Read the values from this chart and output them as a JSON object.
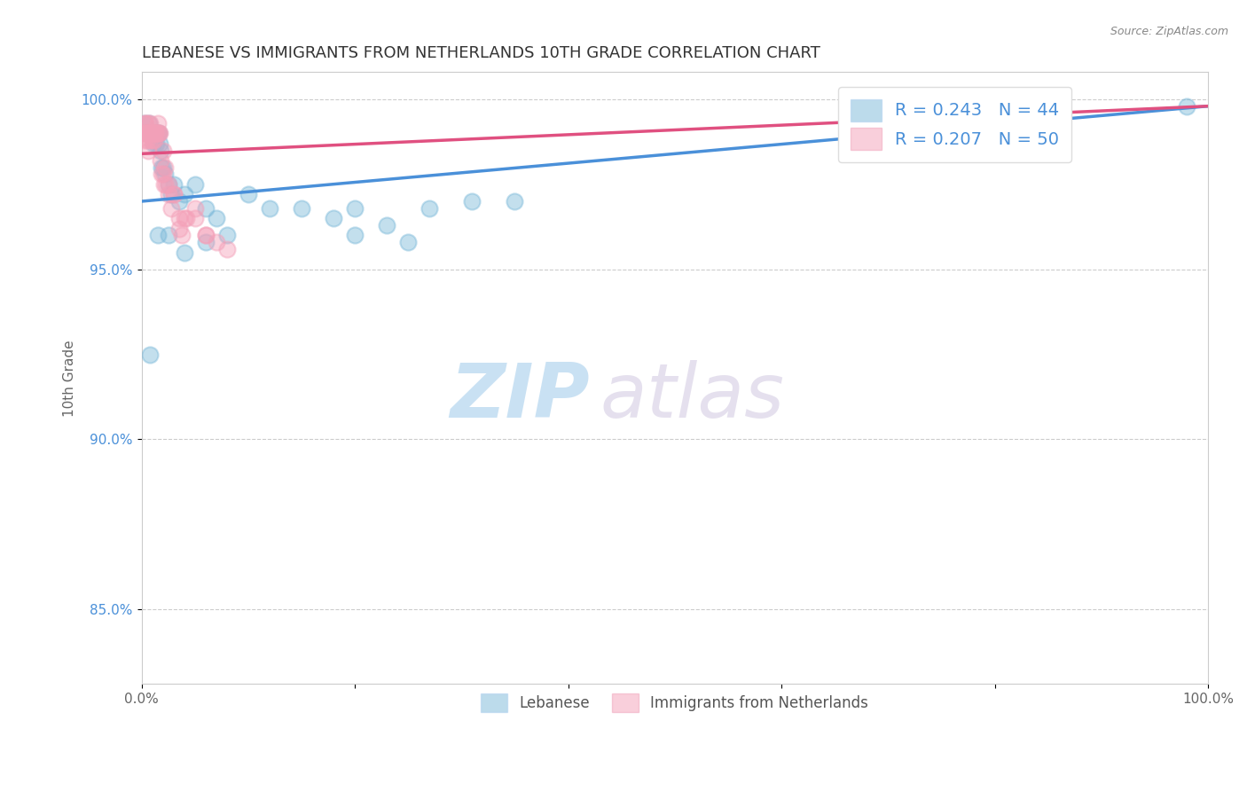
{
  "title": "LEBANESE VS IMMIGRANTS FROM NETHERLANDS 10TH GRADE CORRELATION CHART",
  "source": "Source: ZipAtlas.com",
  "ylabel": "10th Grade",
  "watermark_zip": "ZIP",
  "watermark_atlas": "atlas",
  "xlim": [
    0.0,
    1.0
  ],
  "ylim": [
    0.828,
    1.008
  ],
  "xticks": [
    0.0,
    0.2,
    0.4,
    0.6,
    0.8,
    1.0
  ],
  "xtick_labels": [
    "0.0%",
    "",
    "",
    "",
    "",
    "100.0%"
  ],
  "yticks": [
    0.85,
    0.9,
    0.95,
    1.0
  ],
  "ytick_labels": [
    "85.0%",
    "90.0%",
    "95.0%",
    "100.0%"
  ],
  "blue_R": 0.243,
  "blue_N": 44,
  "pink_R": 0.207,
  "pink_N": 50,
  "blue_color": "#7ab8d9",
  "pink_color": "#f4a0b8",
  "blue_line_color": "#4a90d9",
  "pink_line_color": "#e05080",
  "legend_label_blue": "Lebanese",
  "legend_label_pink": "Immigrants from Netherlands",
  "blue_scatter_x": [
    0.003,
    0.005,
    0.006,
    0.007,
    0.008,
    0.009,
    0.01,
    0.011,
    0.012,
    0.013,
    0.014,
    0.015,
    0.016,
    0.017,
    0.018,
    0.019,
    0.02,
    0.022,
    0.025,
    0.028,
    0.03,
    0.035,
    0.04,
    0.05,
    0.06,
    0.07,
    0.08,
    0.1,
    0.12,
    0.15,
    0.18,
    0.2,
    0.23,
    0.27,
    0.31,
    0.35,
    0.2,
    0.06,
    0.04,
    0.025,
    0.015,
    0.008,
    0.25,
    0.98
  ],
  "blue_scatter_y": [
    0.993,
    0.99,
    0.99,
    0.993,
    0.99,
    0.99,
    0.99,
    0.987,
    0.99,
    0.99,
    0.987,
    0.99,
    0.99,
    0.987,
    0.985,
    0.98,
    0.98,
    0.978,
    0.975,
    0.972,
    0.975,
    0.97,
    0.972,
    0.975,
    0.968,
    0.965,
    0.96,
    0.972,
    0.968,
    0.968,
    0.965,
    0.968,
    0.963,
    0.968,
    0.97,
    0.97,
    0.96,
    0.958,
    0.955,
    0.96,
    0.96,
    0.925,
    0.958,
    0.998
  ],
  "pink_scatter_x": [
    0.002,
    0.003,
    0.004,
    0.005,
    0.006,
    0.007,
    0.008,
    0.009,
    0.01,
    0.011,
    0.012,
    0.013,
    0.014,
    0.015,
    0.016,
    0.017,
    0.018,
    0.019,
    0.02,
    0.021,
    0.022,
    0.023,
    0.025,
    0.028,
    0.03,
    0.035,
    0.038,
    0.042,
    0.05,
    0.06,
    0.07,
    0.08,
    0.006,
    0.007,
    0.008,
    0.009,
    0.01,
    0.012,
    0.015,
    0.02,
    0.025,
    0.03,
    0.035,
    0.04,
    0.05,
    0.06,
    0.004,
    0.003,
    0.005,
    0.006
  ],
  "pink_scatter_y": [
    0.99,
    0.993,
    0.993,
    0.99,
    0.993,
    0.99,
    0.993,
    0.99,
    0.99,
    0.99,
    0.99,
    0.99,
    0.99,
    0.993,
    0.99,
    0.99,
    0.982,
    0.978,
    0.978,
    0.975,
    0.98,
    0.975,
    0.972,
    0.968,
    0.972,
    0.965,
    0.96,
    0.965,
    0.968,
    0.96,
    0.958,
    0.956,
    0.99,
    0.99,
    0.988,
    0.99,
    0.988,
    0.988,
    0.99,
    0.985,
    0.975,
    0.972,
    0.962,
    0.965,
    0.965,
    0.96,
    0.99,
    0.988,
    0.988,
    0.985
  ],
  "blue_line_start_y": 0.97,
  "blue_line_end_y": 0.998,
  "pink_line_start_y": 0.984,
  "pink_line_end_y": 0.998,
  "blue_marker_size": 170,
  "pink_marker_size": 170,
  "title_fontsize": 13,
  "axis_label_fontsize": 11,
  "tick_fontsize": 11,
  "grid_color": "#cccccc",
  "grid_style": "--",
  "background_color": "#ffffff"
}
